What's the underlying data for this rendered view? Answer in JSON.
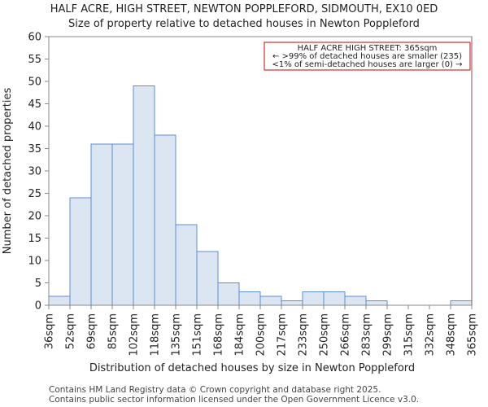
{
  "chart_data": {
    "type": "bar",
    "title": "HALF ACRE, HIGH STREET, NEWTON POPPLEFORD, SIDMOUTH, EX10 0ED",
    "subtitle": "Size of property relative to detached houses in Newton Poppleford",
    "xlabel": "Distribution of detached houses by size in Newton Poppleford",
    "ylabel": "Number of detached properties",
    "ylim": [
      0,
      60
    ],
    "yticks": [
      "0",
      "5",
      "10",
      "15",
      "20",
      "25",
      "30",
      "35",
      "40",
      "45",
      "50",
      "55",
      "60"
    ],
    "xticks": [
      "36sqm",
      "52sqm",
      "69sqm",
      "85sqm",
      "102sqm",
      "118sqm",
      "135sqm",
      "151sqm",
      "168sqm",
      "184sqm",
      "200sqm",
      "217sqm",
      "233sqm",
      "250sqm",
      "266sqm",
      "283sqm",
      "299sqm",
      "315sqm",
      "332sqm",
      "348sqm",
      "365sqm"
    ],
    "values": [
      2,
      24,
      36,
      36,
      49,
      38,
      18,
      12,
      5,
      3,
      2,
      1,
      3,
      3,
      2,
      1,
      0,
      0,
      0,
      1
    ],
    "bar_color": "#dce6f2",
    "bar_edge_color": "#5b8fd0",
    "marker": {
      "value_sqm": 365,
      "color": "#cc0000",
      "annotation_lines": [
        "HALF ACRE HIGH STREET: 365sqm",
        "← >99% of detached houses are smaller (235)",
        "<1% of semi-detached houses are larger (0) →"
      ]
    }
  },
  "footer": {
    "line1": "Contains HM Land Registry data © Crown copyright and database right 2025.",
    "line2": "Contains public sector information licensed under the Open Government Licence v3.0."
  }
}
